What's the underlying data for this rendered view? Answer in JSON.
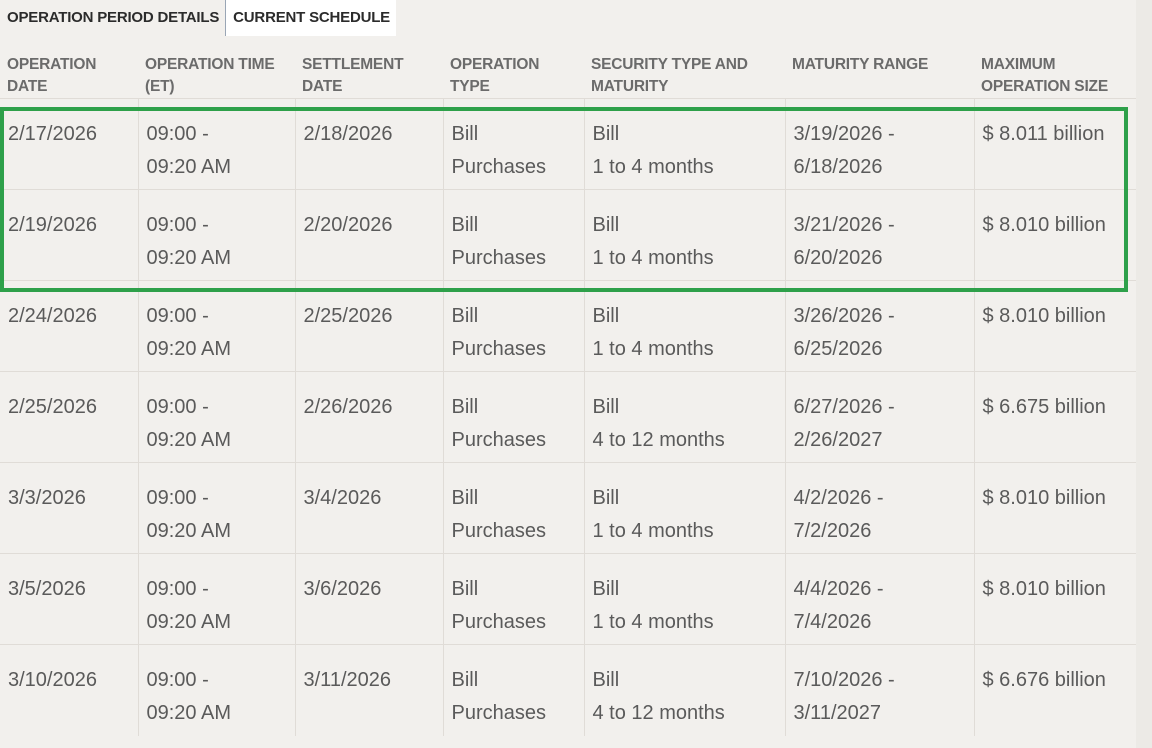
{
  "tabs": {
    "operation_period_details": "OPERATION PERIOD DETAILS",
    "current_schedule": "CURRENT SCHEDULE"
  },
  "table": {
    "headers": {
      "operation_date": [
        "OPERATION",
        "DATE"
      ],
      "operation_time": [
        "OPERATION TIME",
        "(ET)"
      ],
      "settlement_date": [
        "SETTLEMENT",
        "DATE"
      ],
      "operation_type": [
        "OPERATION",
        "TYPE"
      ],
      "security_type": [
        "SECURITY TYPE AND",
        "MATURITY"
      ],
      "maturity_range": [
        "MATURITY RANGE",
        ""
      ],
      "max_size": [
        "MAXIMUM",
        "OPERATION SIZE"
      ]
    },
    "rows": [
      {
        "date": "2/17/2026",
        "time": [
          "09:00 -",
          "09:20 AM"
        ],
        "settlement": "2/18/2026",
        "type": [
          "Bill",
          "Purchases"
        ],
        "security": [
          "Bill",
          "1 to 4 months"
        ],
        "maturity": [
          "3/19/2026 -",
          "6/18/2026"
        ],
        "size": "$ 8.011 billion"
      },
      {
        "date": "2/19/2026",
        "time": [
          "09:00 -",
          "09:20 AM"
        ],
        "settlement": "2/20/2026",
        "type": [
          "Bill",
          "Purchases"
        ],
        "security": [
          "Bill",
          "1 to 4 months"
        ],
        "maturity": [
          "3/21/2026 -",
          "6/20/2026"
        ],
        "size": "$ 8.010 billion"
      },
      {
        "date": "2/24/2026",
        "time": [
          "09:00 -",
          "09:20 AM"
        ],
        "settlement": "2/25/2026",
        "type": [
          "Bill",
          "Purchases"
        ],
        "security": [
          "Bill",
          "1 to 4 months"
        ],
        "maturity": [
          "3/26/2026 -",
          "6/25/2026"
        ],
        "size": "$ 8.010 billion"
      },
      {
        "date": "2/25/2026",
        "time": [
          "09:00 -",
          "09:20 AM"
        ],
        "settlement": "2/26/2026",
        "type": [
          "Bill",
          "Purchases"
        ],
        "security": [
          "Bill",
          "4 to 12 months"
        ],
        "maturity": [
          "6/27/2026 -",
          "2/26/2027"
        ],
        "size": "$ 6.675 billion"
      },
      {
        "date": "3/3/2026",
        "time": [
          "09:00 -",
          "09:20 AM"
        ],
        "settlement": "3/4/2026",
        "type": [
          "Bill",
          "Purchases"
        ],
        "security": [
          "Bill",
          "1 to 4 months"
        ],
        "maturity": [
          "4/2/2026 -",
          "7/2/2026"
        ],
        "size": "$ 8.010 billion"
      },
      {
        "date": "3/5/2026",
        "time": [
          "09:00 -",
          "09:20 AM"
        ],
        "settlement": "3/6/2026",
        "type": [
          "Bill",
          "Purchases"
        ],
        "security": [
          "Bill",
          "1 to 4 months"
        ],
        "maturity": [
          "4/4/2026 -",
          "7/4/2026"
        ],
        "size": "$ 8.010 billion"
      },
      {
        "date": "3/10/2026",
        "time": [
          "09:00 -",
          "09:20 AM"
        ],
        "settlement": "3/11/2026",
        "type": [
          "Bill",
          "Purchases"
        ],
        "security": [
          "Bill",
          "4 to 12 months"
        ],
        "maturity": [
          "7/10/2026 -",
          "3/11/2027"
        ],
        "size": "$ 6.676 billion"
      }
    ]
  },
  "colors": {
    "highlight": "#2ea04a",
    "background": "#f2f0ed"
  }
}
